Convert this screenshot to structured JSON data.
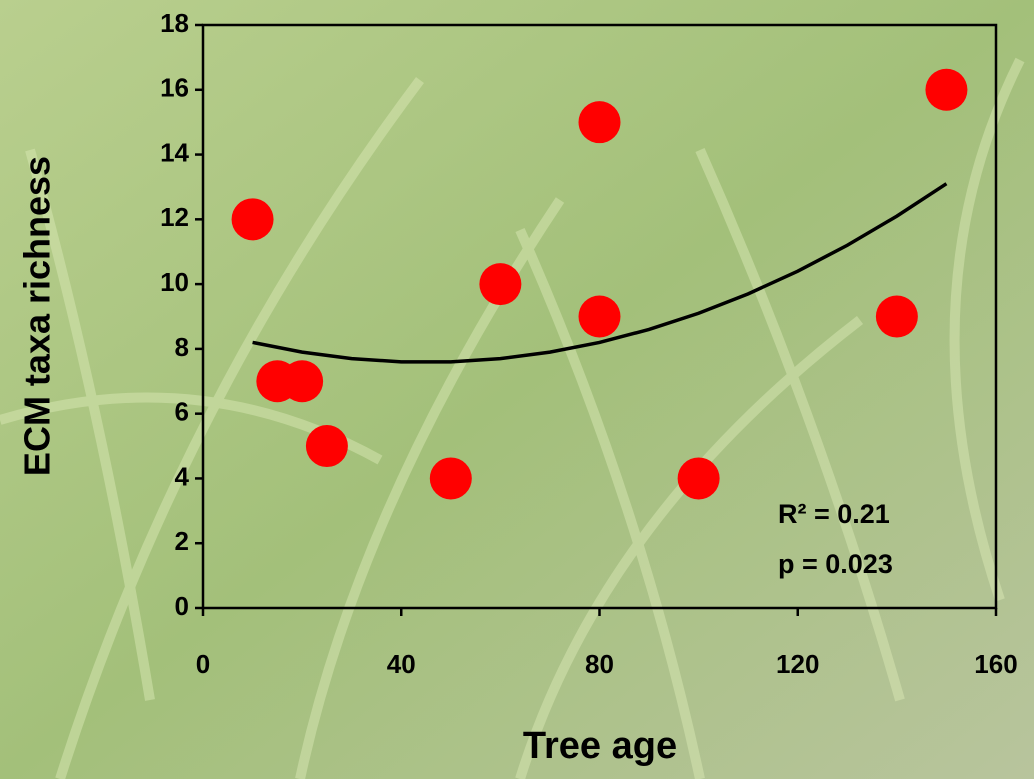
{
  "chart_data": {
    "type": "scatter",
    "x_label": "Tree age",
    "y_label": "ECM taxa richness",
    "x": [
      10,
      15,
      20,
      25,
      50,
      60,
      80,
      80,
      100,
      140,
      150
    ],
    "values": [
      12,
      7,
      7,
      5,
      4,
      10,
      15,
      9,
      4,
      9,
      16
    ],
    "color": "#ff0000",
    "trendline": {
      "x": [
        10,
        20,
        30,
        40,
        50,
        60,
        70,
        80,
        90,
        100,
        110,
        120,
        130,
        140,
        150
      ],
      "values": [
        8.2,
        7.9,
        7.7,
        7.6,
        7.6,
        7.7,
        7.9,
        8.2,
        8.6,
        9.1,
        9.7,
        10.4,
        11.2,
        12.1,
        13.1
      ],
      "color": "#000000"
    },
    "annotations": [
      "R² = 0.21",
      "p = 0.023"
    ],
    "xlim": [
      0,
      160
    ],
    "xticks": [
      0,
      40,
      80,
      120,
      160
    ],
    "ylim": [
      0,
      18
    ],
    "yticks": [
      0,
      2,
      4,
      6,
      8,
      10,
      12,
      14,
      16,
      18
    ]
  }
}
